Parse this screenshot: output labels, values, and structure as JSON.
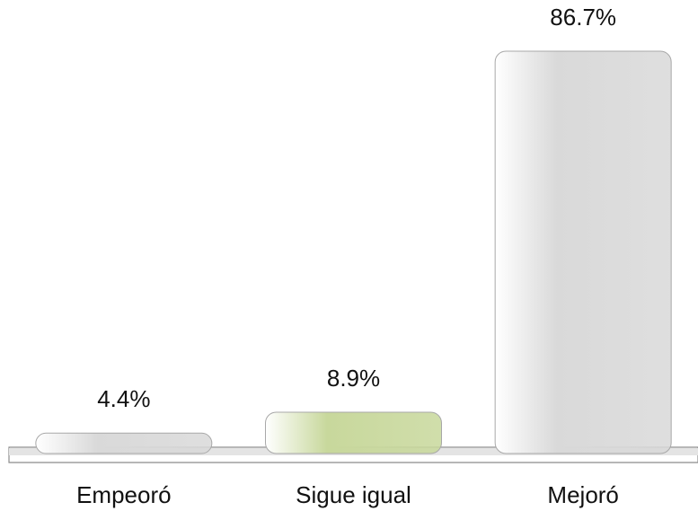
{
  "chart_data": {
    "type": "bar",
    "categories": [
      "Empeoró",
      "Sigue igual",
      "Mejoró"
    ],
    "values": [
      4.4,
      8.9,
      86.7
    ],
    "value_labels": [
      "4.4%",
      "8.9%",
      "86.7%"
    ],
    "colors": [
      "#d9d9d9",
      "#c8d89c",
      "#d9d9d9"
    ]
  }
}
